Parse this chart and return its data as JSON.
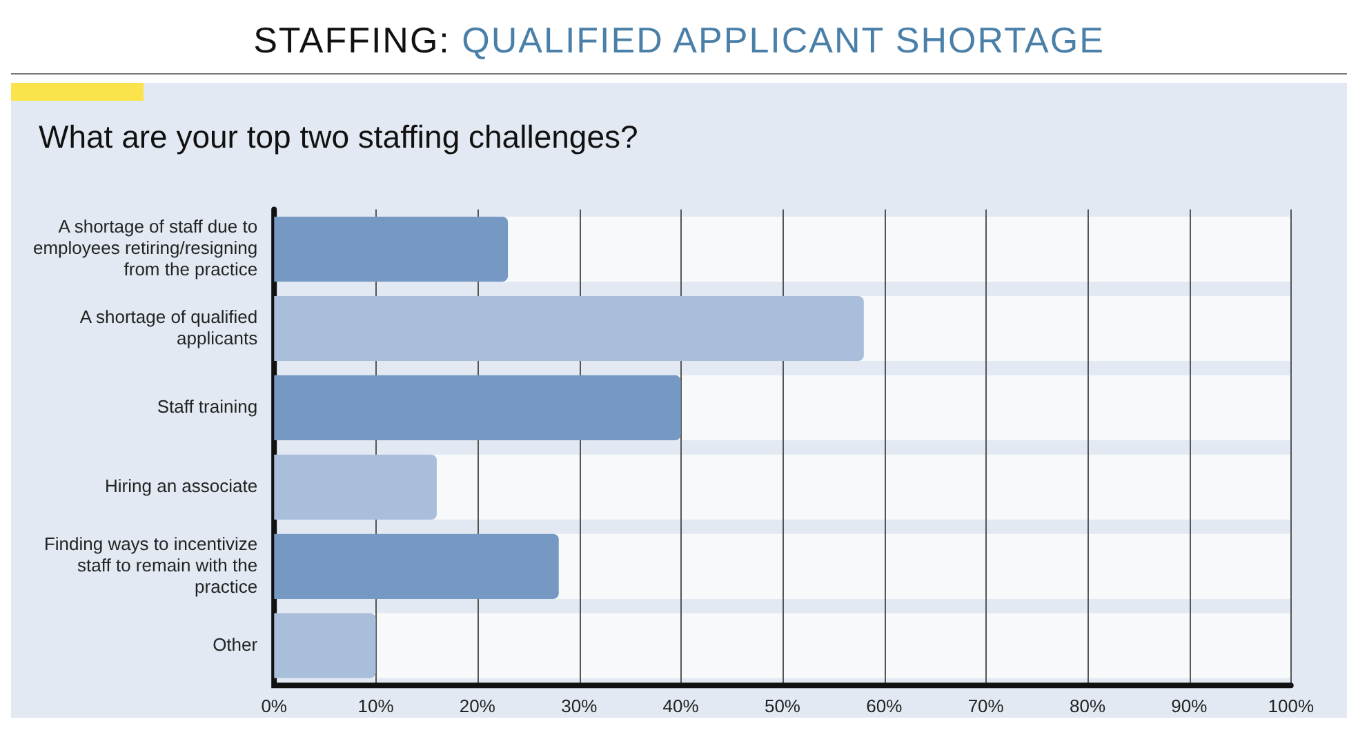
{
  "chart_data": {
    "type": "bar",
    "orientation": "horizontal",
    "title": "STAFFING: QUALIFIED APPLICANT SHORTAGE",
    "subtitle": "What are your top two staffing challenges?",
    "categories": [
      "A shortage of staff due to employees retiring/resigning from the practice",
      "A shortage of qualified applicants",
      "Staff training",
      "Hiring an associate",
      "Finding ways to incentivize staff to remain with the practice",
      "Other"
    ],
    "values": [
      23,
      58,
      40,
      16,
      28,
      10
    ],
    "colors": [
      "#7599c3",
      "#a9bedb",
      "#7599c3",
      "#a9bedb",
      "#7599c3",
      "#a9bedb"
    ],
    "xlim": [
      0,
      100
    ],
    "xticks": [
      {
        "value": 0,
        "label": "0%"
      },
      {
        "value": 10,
        "label": "10%"
      },
      {
        "value": 20,
        "label": "20%"
      },
      {
        "value": 30,
        "label": "30%"
      },
      {
        "value": 40,
        "label": "40%"
      },
      {
        "value": 50,
        "label": "50%"
      },
      {
        "value": 60,
        "label": "60%"
      },
      {
        "value": 70,
        "label": "70%"
      },
      {
        "value": 80,
        "label": "80%"
      },
      {
        "value": 90,
        "label": "90%"
      },
      {
        "value": 100,
        "label": "100%"
      }
    ],
    "grid": "x",
    "legend": false
  }
}
